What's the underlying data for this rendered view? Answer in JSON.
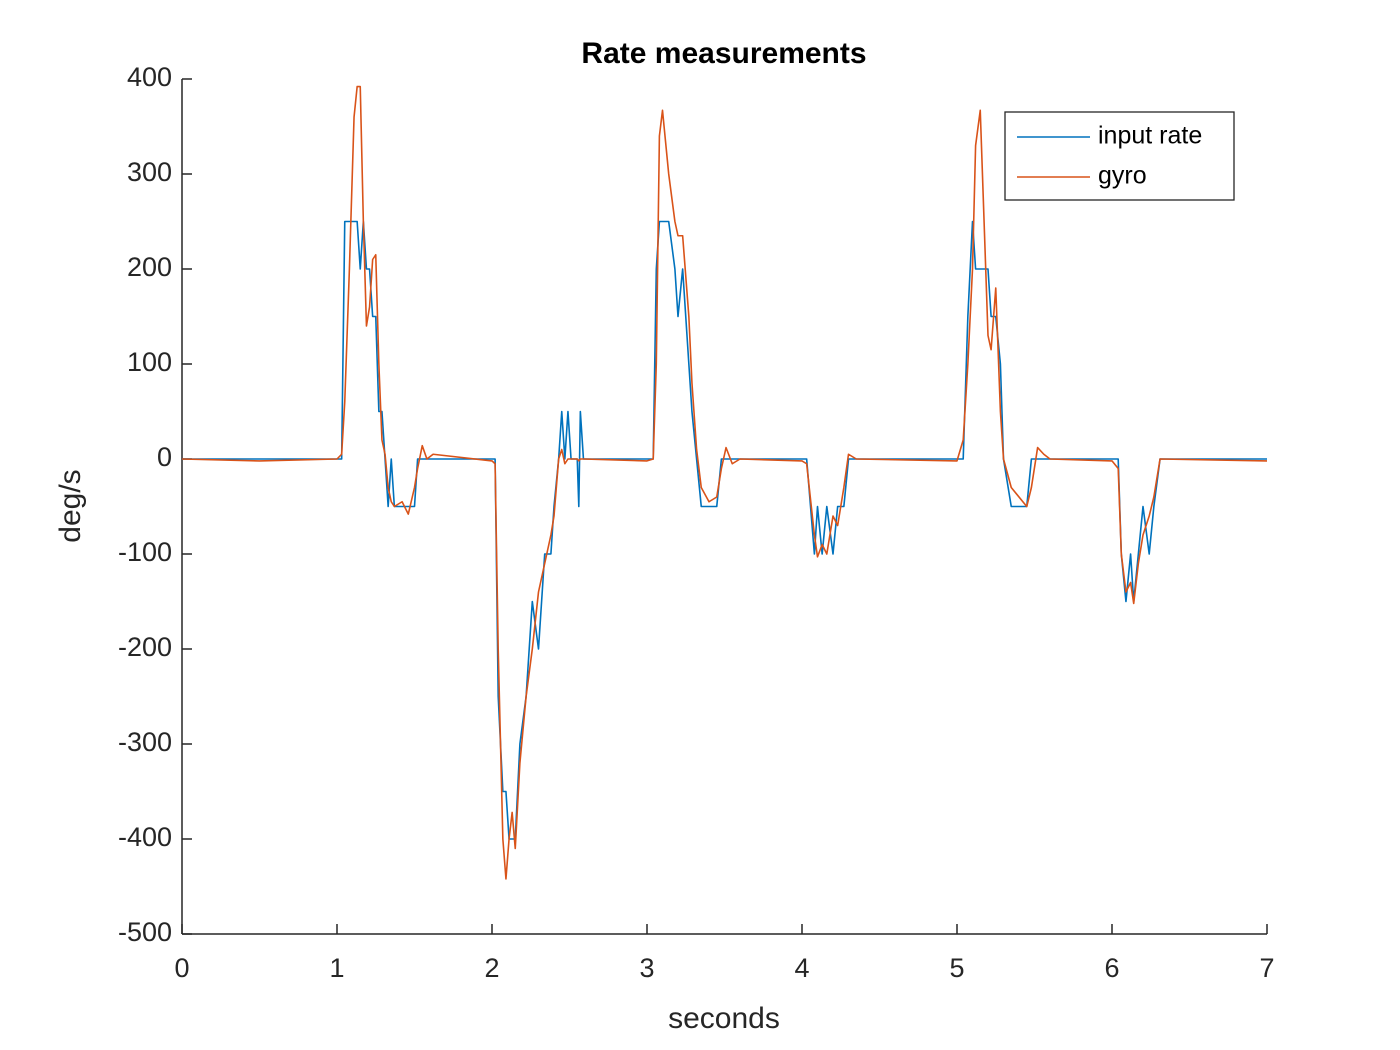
{
  "chart_data": {
    "type": "line",
    "title": "Rate measurements",
    "x_label": "seconds",
    "y_label": "deg/s",
    "x": [
      0,
      0.5,
      1,
      1.03,
      1.05,
      1.08,
      1.11,
      1.13,
      1.15,
      1.17,
      1.19,
      1.21,
      1.23,
      1.25,
      1.27,
      1.29,
      1.31,
      1.33,
      1.35,
      1.37,
      1.42,
      1.46,
      1.5,
      1.52,
      1.55,
      1.58,
      1.62,
      2,
      2.02,
      2.04,
      2.07,
      2.09,
      2.11,
      2.13,
      2.15,
      2.18,
      2.22,
      2.26,
      2.3,
      2.34,
      2.38,
      2.4,
      2.43,
      2.45,
      2.47,
      2.49,
      2.51,
      2.55,
      2.56,
      2.57,
      2.59,
      3,
      3.04,
      3.06,
      3.08,
      3.1,
      3.14,
      3.18,
      3.2,
      3.23,
      3.27,
      3.29,
      3.32,
      3.35,
      3.4,
      3.45,
      3.48,
      3.51,
      3.55,
      3.6,
      4,
      4.03,
      4.08,
      4.1,
      4.13,
      4.16,
      4.2,
      4.23,
      4.27,
      4.3,
      4.35,
      5,
      5.04,
      5.07,
      5.1,
      5.12,
      5.15,
      5.2,
      5.22,
      5.25,
      5.28,
      5.3,
      5.35,
      5.45,
      5.48,
      5.52,
      5.56,
      5.6,
      6,
      6.04,
      6.06,
      6.09,
      6.12,
      6.14,
      6.17,
      6.2,
      6.24,
      6.27,
      6.31,
      7
    ],
    "series": [
      {
        "name": "input rate",
        "color": "#0072bd",
        "values": [
          0,
          0,
          0,
          0,
          250,
          250,
          250,
          250,
          200,
          250,
          200,
          200,
          150,
          150,
          50,
          50,
          0,
          -50,
          0,
          -50,
          -50,
          -50,
          -50,
          0,
          0,
          0,
          0,
          0,
          0,
          -250,
          -350,
          -350,
          -400,
          -400,
          -400,
          -300,
          -250,
          -150,
          -200,
          -100,
          -100,
          -50,
          0,
          50,
          0,
          50,
          0,
          0,
          -50,
          50,
          0,
          0,
          0,
          200,
          250,
          250,
          250,
          200,
          150,
          200,
          100,
          50,
          0,
          -50,
          -50,
          -50,
          0,
          0,
          0,
          0,
          0,
          0,
          -100,
          -50,
          -100,
          -50,
          -100,
          -50,
          -50,
          0,
          0,
          0,
          0,
          150,
          250,
          200,
          200,
          200,
          150,
          150,
          100,
          0,
          -50,
          -50,
          0,
          0,
          0,
          0,
          0,
          0,
          -100,
          -150,
          -100,
          -150,
          -100,
          -50,
          -100,
          -50,
          0,
          0
        ]
      },
      {
        "name": "gyro",
        "color": "#d95319",
        "values": [
          0,
          -2,
          0,
          5,
          60,
          200,
          360,
          392,
          392,
          250,
          140,
          160,
          210,
          215,
          100,
          20,
          5,
          -30,
          -45,
          -50,
          -45,
          -58,
          -30,
          -10,
          14,
          0,
          5,
          -2,
          -5,
          -200,
          -400,
          -442,
          -400,
          -372,
          -410,
          -320,
          -250,
          -200,
          -140,
          -110,
          -80,
          -60,
          0,
          10,
          -5,
          0,
          0,
          0,
          -2,
          0,
          0,
          -2,
          0,
          100,
          340,
          367,
          300,
          250,
          235,
          235,
          150,
          80,
          10,
          -30,
          -45,
          -40,
          -10,
          12,
          -5,
          0,
          -2,
          -5,
          -80,
          -103,
          -90,
          -100,
          -60,
          -70,
          -30,
          5,
          0,
          -2,
          20,
          100,
          200,
          330,
          367,
          130,
          115,
          180,
          50,
          0,
          -30,
          -50,
          -30,
          12,
          5,
          0,
          -2,
          -10,
          -100,
          -140,
          -130,
          -152,
          -110,
          -80,
          -60,
          -40,
          0,
          -2
        ]
      }
    ],
    "xlim": [
      0,
      7
    ],
    "xticks": [
      0,
      1,
      2,
      3,
      4,
      5,
      6,
      7
    ],
    "ylim": [
      -500,
      400
    ],
    "yticks": [
      -500,
      -400,
      -300,
      -200,
      -100,
      0,
      100,
      200,
      300,
      400
    ],
    "grid": false,
    "legend": "upper right"
  }
}
